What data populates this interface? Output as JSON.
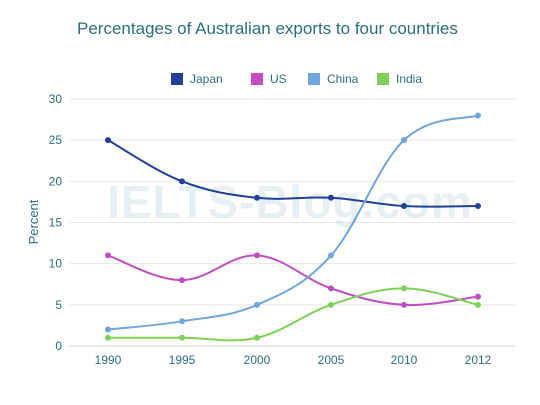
{
  "chart_data": {
    "type": "line",
    "title": "Percentages of Australian exports to four countries",
    "ylabel": "Percent",
    "xlabel": "",
    "x": [
      "1990",
      "1995",
      "2000",
      "2005",
      "2010",
      "2012"
    ],
    "ylim": [
      0,
      30
    ],
    "yticks": [
      0,
      5,
      10,
      15,
      20,
      25,
      30
    ],
    "grid": true,
    "legend": "top",
    "series": [
      {
        "name": "Japan",
        "color": "#21409a",
        "values": [
          25,
          20,
          18,
          18,
          17,
          17
        ]
      },
      {
        "name": "US",
        "color": "#c04ec0",
        "values": [
          11,
          8,
          11,
          7,
          5,
          6
        ]
      },
      {
        "name": "China",
        "color": "#6fa6dc",
        "values": [
          2,
          3,
          5,
          11,
          25,
          28
        ]
      },
      {
        "name": "India",
        "color": "#7dd15a",
        "values": [
          1,
          1,
          1,
          5,
          7,
          5
        ]
      }
    ]
  },
  "watermark": "IELTS-Blog.com"
}
